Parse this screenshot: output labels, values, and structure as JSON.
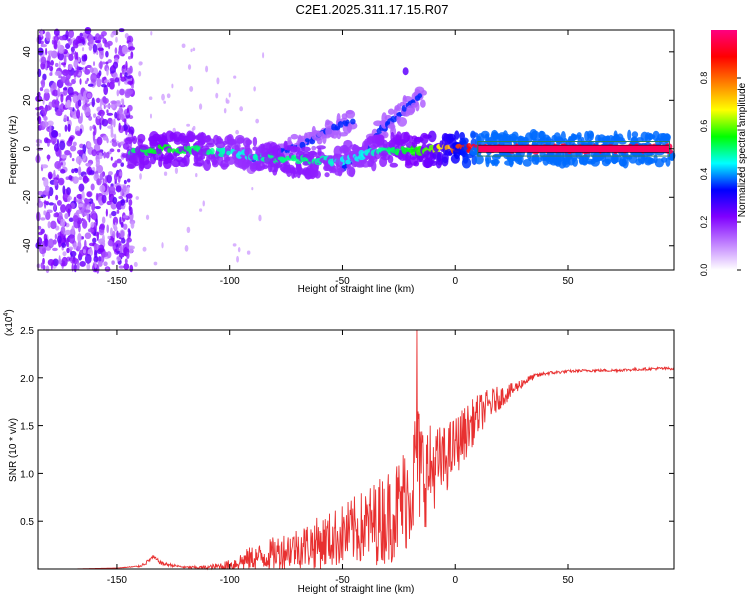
{
  "figure_title": "C2E1.2025.311.17.15.R07",
  "chart_data": [
    {
      "type": "heatmap",
      "title": "C2E1.2025.311.17.15.R07",
      "xlabel": "Height of straight line (km)",
      "ylabel": "Frequency (Hz)",
      "xlim": [
        -185,
        97
      ],
      "ylim": [
        -50,
        49
      ],
      "xticks": [
        -150,
        -100,
        -50,
        0,
        50
      ],
      "yticks": [
        -40,
        -20,
        0,
        20,
        40
      ],
      "xtick_labels": [
        "-150",
        "-100",
        "-50",
        "0",
        "50"
      ],
      "ytick_labels": [
        "-40",
        "-20",
        "0",
        "20",
        "40"
      ],
      "colorbar": {
        "label": "Normalized spectral amplitude",
        "range": [
          0,
          1
        ],
        "ticks": [
          0.0,
          0.2,
          0.4,
          0.6,
          0.8
        ],
        "tick_labels": [
          "0.0",
          "0.2",
          "0.4",
          "0.6",
          "0.8"
        ],
        "colors": [
          "#ffffff",
          "#c080ff",
          "#8000ff",
          "#0000ff",
          "#00ffff",
          "#00ff00",
          "#ffff00",
          "#ff8000",
          "#ff0000",
          "#ff0080"
        ]
      },
      "features": [
        {
          "name": "broadband noise region",
          "x_range": [
            -185,
            -143
          ],
          "y_range": [
            -50,
            49
          ],
          "amplitude": 0.2
        },
        {
          "name": "main trace",
          "x": [
            -145,
            -130,
            -110,
            -95,
            -80,
            -65,
            -50,
            -40,
            -30,
            -20,
            -10,
            0,
            10,
            95
          ],
          "y": [
            -2,
            0,
            -1,
            -2,
            -4,
            -5,
            -5,
            -2,
            -1,
            -1,
            0,
            0,
            0,
            0
          ],
          "amplitude": [
            0.5,
            0.55,
            0.5,
            0.45,
            0.5,
            0.5,
            0.45,
            0.45,
            0.5,
            0.55,
            0.6,
            0.8,
            0.95,
            0.95
          ]
        },
        {
          "name": "upper branch",
          "x": [
            -95,
            -80,
            -65,
            -55,
            -45
          ],
          "y": [
            -5,
            -2,
            3,
            8,
            12
          ],
          "amplitude": 0.35
        },
        {
          "name": "rising branch",
          "x": [
            -50,
            -40,
            -30,
            -20,
            -15
          ],
          "y": [
            -8,
            0,
            10,
            18,
            22
          ],
          "amplitude": 0.35
        },
        {
          "name": "outlier",
          "x": [
            -22
          ],
          "y": [
            32
          ],
          "amplitude": 0.25
        }
      ]
    },
    {
      "type": "line",
      "xlabel": "Height of straight line (km)",
      "ylabel": "SNR (10 * v/v)",
      "scale_label": "(x10",
      "scale_exponent": "4",
      "xlim": [
        -185,
        97
      ],
      "ylim": [
        0,
        2.5
      ],
      "xticks": [
        -150,
        -100,
        -50,
        0,
        50
      ],
      "yticks": [
        0.5,
        1.0,
        1.5,
        2.0,
        2.5
      ],
      "xtick_labels": [
        "-150",
        "-100",
        "-50",
        "0",
        "50"
      ],
      "ytick_labels": [
        "0.5",
        "1.0",
        "1.5",
        "2.0",
        "2.5"
      ],
      "color": "#e83030",
      "series": [
        {
          "name": "SNR",
          "x": [
            -185,
            -170,
            -150,
            -140,
            -137,
            -134,
            -130,
            -120,
            -110,
            -100,
            -95,
            -90,
            -85,
            -80,
            -75,
            -70,
            -65,
            -60,
            -55,
            -50,
            -45,
            -40,
            -35,
            -30,
            -25,
            -20,
            -17,
            -15,
            -12,
            -10,
            -5,
            0,
            5,
            10,
            15,
            20,
            25,
            30,
            35,
            40,
            50,
            60,
            70,
            80,
            90,
            97
          ],
          "y": [
            0.0,
            0.0,
            0.01,
            0.03,
            0.07,
            0.13,
            0.06,
            0.02,
            0.02,
            0.05,
            0.1,
            0.14,
            0.16,
            0.2,
            0.24,
            0.27,
            0.3,
            0.33,
            0.37,
            0.42,
            0.47,
            0.52,
            0.58,
            0.65,
            0.75,
            0.95,
            1.25,
            1.15,
            1.1,
            1.15,
            1.2,
            1.35,
            1.5,
            1.65,
            1.75,
            1.82,
            1.88,
            1.96,
            2.02,
            2.05,
            2.07,
            2.08,
            2.08,
            2.09,
            2.1,
            2.1
          ],
          "noise_amplitude": [
            0.0,
            0.0,
            0.0,
            0.01,
            0.02,
            0.02,
            0.02,
            0.01,
            0.02,
            0.06,
            0.1,
            0.13,
            0.15,
            0.18,
            0.2,
            0.22,
            0.25,
            0.28,
            0.3,
            0.33,
            0.36,
            0.4,
            0.45,
            0.5,
            0.55,
            0.6,
            0.7,
            0.6,
            0.55,
            0.45,
            0.38,
            0.32,
            0.28,
            0.22,
            0.17,
            0.12,
            0.08,
            0.05,
            0.03,
            0.02,
            0.015,
            0.015,
            0.015,
            0.015,
            0.015,
            0.015
          ],
          "peak": {
            "x": -17,
            "y": 2.5
          }
        }
      ]
    }
  ]
}
